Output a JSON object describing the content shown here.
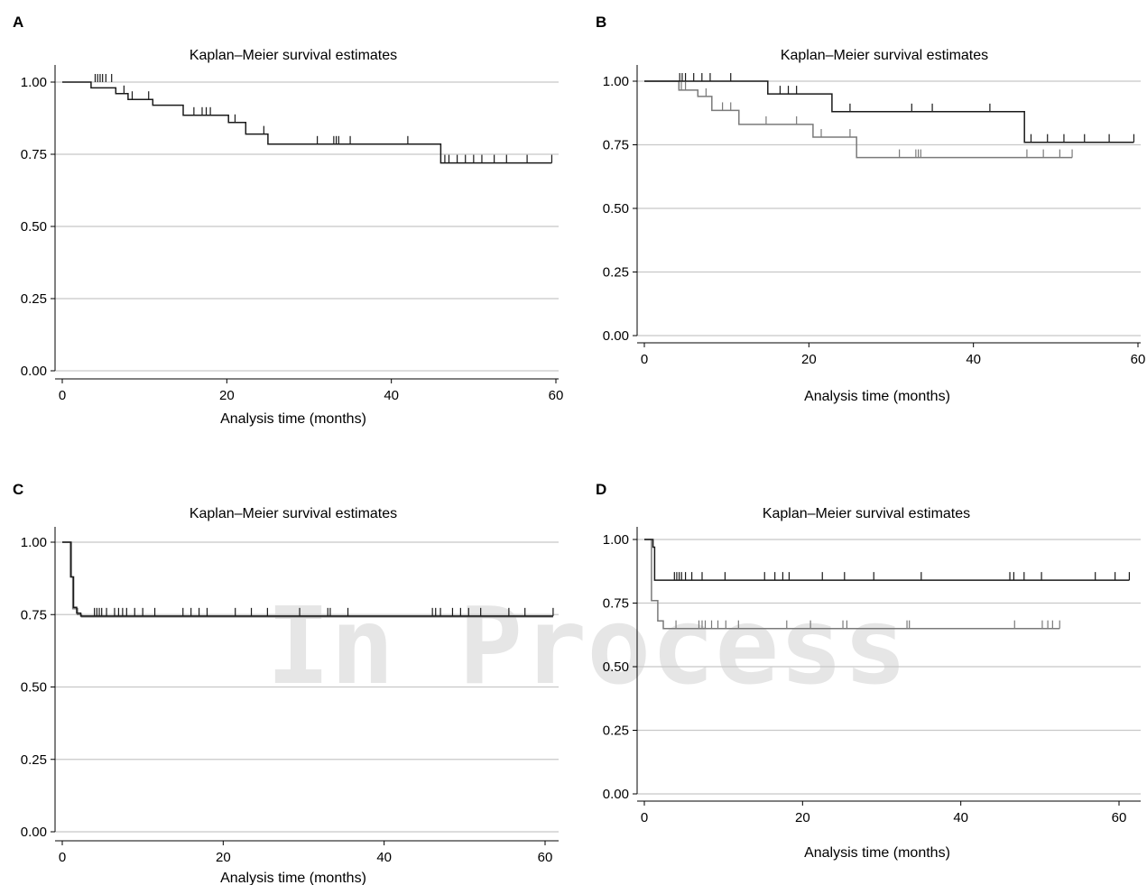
{
  "watermark": "In Process",
  "colors": {
    "black_series": "#1a1a1a",
    "gray_series": "#7a7a7a",
    "grid": "#c8c8c8"
  },
  "chart_data": [
    {
      "panel": "A",
      "type": "line",
      "title": "Kaplan–Meier survival estimates",
      "xlabel": "Analysis time (months)",
      "ylabel": "",
      "xlim": [
        0,
        60
      ],
      "ylim": [
        0,
        1
      ],
      "xticks": [
        0,
        20,
        40,
        60
      ],
      "yticks": [
        0,
        0.25,
        0.5,
        0.75,
        1.0
      ],
      "ytick_labels": [
        "0.00",
        "0.25",
        "0.50",
        "0.75",
        "1.00"
      ],
      "grid": true,
      "series": [
        {
          "color": "#1a1a1a",
          "steps": [
            [
              0,
              1.0
            ],
            [
              3.5,
              1.0
            ],
            [
              3.5,
              0.98
            ],
            [
              6.5,
              0.98
            ],
            [
              6.5,
              0.96
            ],
            [
              8,
              0.96
            ],
            [
              8,
              0.94
            ],
            [
              11,
              0.94
            ],
            [
              11,
              0.92
            ],
            [
              14.7,
              0.92
            ],
            [
              14.7,
              0.885
            ],
            [
              20.2,
              0.885
            ],
            [
              20.2,
              0.86
            ],
            [
              22.3,
              0.86
            ],
            [
              22.3,
              0.82
            ],
            [
              25,
              0.82
            ],
            [
              25,
              0.785
            ],
            [
              46,
              0.785
            ],
            [
              46,
              0.72
            ],
            [
              59.5,
              0.72
            ]
          ],
          "censored": [
            [
              4,
              1.0
            ],
            [
              4.3,
              1.0
            ],
            [
              4.6,
              1.0
            ],
            [
              4.9,
              1.0
            ],
            [
              5.3,
              1.0
            ],
            [
              6,
              1.0
            ],
            [
              7.5,
              0.96
            ],
            [
              8.5,
              0.94
            ],
            [
              10.5,
              0.94
            ],
            [
              16,
              0.885
            ],
            [
              17,
              0.885
            ],
            [
              17.5,
              0.885
            ],
            [
              18,
              0.885
            ],
            [
              21,
              0.86
            ],
            [
              24.5,
              0.82
            ],
            [
              31,
              0.785
            ],
            [
              33,
              0.785
            ],
            [
              33.3,
              0.785
            ],
            [
              33.6,
              0.785
            ],
            [
              35,
              0.785
            ],
            [
              42,
              0.785
            ],
            [
              46.5,
              0.72
            ],
            [
              47,
              0.72
            ],
            [
              48,
              0.72
            ],
            [
              49,
              0.72
            ],
            [
              50,
              0.72
            ],
            [
              51,
              0.72
            ],
            [
              52.5,
              0.72
            ],
            [
              54,
              0.72
            ],
            [
              56.5,
              0.72
            ],
            [
              59.5,
              0.72
            ]
          ]
        }
      ]
    },
    {
      "panel": "B",
      "type": "line",
      "title": "Kaplan–Meier survival estimates",
      "xlabel": "Analysis time (months)",
      "ylabel": "",
      "xlim": [
        0,
        60
      ],
      "ylim": [
        0,
        1
      ],
      "xticks": [
        0,
        20,
        40,
        60
      ],
      "yticks": [
        0,
        0.25,
        0.5,
        0.75,
        1.0
      ],
      "ytick_labels": [
        "0.00",
        "0.25",
        "0.50",
        "0.75",
        "1.00"
      ],
      "grid": true,
      "series": [
        {
          "color": "#1a1a1a",
          "steps": [
            [
              0,
              1.0
            ],
            [
              15,
              1.0
            ],
            [
              15,
              0.95
            ],
            [
              22.8,
              0.95
            ],
            [
              22.8,
              0.88
            ],
            [
              46.2,
              0.88
            ],
            [
              46.2,
              0.76
            ],
            [
              59.5,
              0.76
            ]
          ],
          "censored": [
            [
              4.3,
              1.0
            ],
            [
              4.6,
              1.0
            ],
            [
              5,
              1.0
            ],
            [
              6,
              1.0
            ],
            [
              7,
              1.0
            ],
            [
              8,
              1.0
            ],
            [
              10.5,
              1.0
            ],
            [
              16.5,
              0.95
            ],
            [
              17.5,
              0.95
            ],
            [
              18.5,
              0.95
            ],
            [
              25,
              0.88
            ],
            [
              32.5,
              0.88
            ],
            [
              35,
              0.88
            ],
            [
              42,
              0.88
            ],
            [
              47,
              0.76
            ],
            [
              49,
              0.76
            ],
            [
              51,
              0.76
            ],
            [
              53.5,
              0.76
            ],
            [
              56.5,
              0.76
            ],
            [
              59.5,
              0.76
            ]
          ]
        },
        {
          "color": "#7a7a7a",
          "steps": [
            [
              0,
              1.0
            ],
            [
              4.2,
              1.0
            ],
            [
              4.2,
              0.965
            ],
            [
              6.5,
              0.965
            ],
            [
              6.5,
              0.94
            ],
            [
              8.2,
              0.94
            ],
            [
              8.2,
              0.885
            ],
            [
              11.5,
              0.885
            ],
            [
              11.5,
              0.83
            ],
            [
              20.5,
              0.83
            ],
            [
              20.5,
              0.78
            ],
            [
              25.8,
              0.78
            ],
            [
              25.8,
              0.7
            ],
            [
              52,
              0.7
            ]
          ],
          "censored": [
            [
              4.5,
              0.965
            ],
            [
              5,
              0.965
            ],
            [
              7.5,
              0.94
            ],
            [
              9.5,
              0.885
            ],
            [
              10.5,
              0.885
            ],
            [
              14.8,
              0.83
            ],
            [
              18.5,
              0.83
            ],
            [
              21.5,
              0.78
            ],
            [
              25,
              0.78
            ],
            [
              31,
              0.7
            ],
            [
              33,
              0.7
            ],
            [
              33.3,
              0.7
            ],
            [
              33.6,
              0.7
            ],
            [
              46.5,
              0.7
            ],
            [
              48.5,
              0.7
            ],
            [
              50.5,
              0.7
            ],
            [
              52,
              0.7
            ]
          ]
        }
      ]
    },
    {
      "panel": "C",
      "type": "line",
      "title": "Kaplan–Meier survival estimates",
      "xlabel": "Analysis time (months)",
      "ylabel": "",
      "xlim": [
        0,
        60
      ],
      "ylim": [
        0,
        1
      ],
      "xticks": [
        0,
        20,
        40,
        60
      ],
      "yticks": [
        0,
        0.25,
        0.5,
        0.75,
        1.0
      ],
      "ytick_labels": [
        "0.00",
        "0.25",
        "0.50",
        "0.75",
        "1.00"
      ],
      "grid": true,
      "series": [
        {
          "color": "#1a1a1a",
          "steps": [
            [
              0,
              1.0
            ],
            [
              1.1,
              1.0
            ],
            [
              1.1,
              0.88
            ],
            [
              1.4,
              0.88
            ],
            [
              1.4,
              0.775
            ],
            [
              1.8,
              0.775
            ],
            [
              1.8,
              0.755
            ],
            [
              2.3,
              0.755
            ],
            [
              2.3,
              0.745
            ],
            [
              61,
              0.745
            ]
          ],
          "censored": [
            [
              4,
              0.745
            ],
            [
              4.3,
              0.745
            ],
            [
              4.6,
              0.745
            ],
            [
              4.9,
              0.745
            ],
            [
              5.5,
              0.745
            ],
            [
              6.5,
              0.745
            ],
            [
              7,
              0.745
            ],
            [
              7.5,
              0.745
            ],
            [
              8,
              0.745
            ],
            [
              9,
              0.745
            ],
            [
              10,
              0.745
            ],
            [
              11.5,
              0.745
            ],
            [
              15,
              0.745
            ],
            [
              16,
              0.745
            ],
            [
              17,
              0.745
            ],
            [
              18,
              0.745
            ],
            [
              21.5,
              0.745
            ],
            [
              23.5,
              0.745
            ],
            [
              25.5,
              0.745
            ],
            [
              29.5,
              0.745
            ],
            [
              33,
              0.745
            ],
            [
              33.3,
              0.745
            ],
            [
              35.5,
              0.745
            ],
            [
              46,
              0.745
            ],
            [
              46.4,
              0.745
            ],
            [
              47,
              0.745
            ],
            [
              48.5,
              0.745
            ],
            [
              49.5,
              0.745
            ],
            [
              50.5,
              0.745
            ],
            [
              52,
              0.745
            ],
            [
              55.5,
              0.745
            ],
            [
              57.5,
              0.745
            ],
            [
              61,
              0.745
            ]
          ]
        },
        {
          "color": "#7a7a7a",
          "steps": [
            [
              0,
              1.0
            ],
            [
              1.0,
              1.0
            ],
            [
              1.0,
              0.88
            ],
            [
              1.3,
              0.88
            ],
            [
              1.3,
              0.77
            ],
            [
              1.9,
              0.77
            ],
            [
              1.9,
              0.75
            ],
            [
              2.4,
              0.75
            ],
            [
              2.4,
              0.742
            ],
            [
              61,
              0.742
            ]
          ],
          "censored": []
        }
      ]
    },
    {
      "panel": "D",
      "type": "line",
      "title": "Kaplan–Meier survival estimates",
      "xlabel": "Analysis time (months)",
      "ylabel": "",
      "xlim": [
        0,
        60
      ],
      "ylim": [
        0,
        1
      ],
      "xticks": [
        0,
        20,
        40,
        60
      ],
      "yticks": [
        0,
        0.25,
        0.5,
        0.75,
        1.0
      ],
      "ytick_labels": [
        "0.00",
        "0.25",
        "0.50",
        "0.75",
        "1.00"
      ],
      "grid": true,
      "series": [
        {
          "color": "#1a1a1a",
          "steps": [
            [
              0,
              1.0
            ],
            [
              1.1,
              1.0
            ],
            [
              1.1,
              0.97
            ],
            [
              1.3,
              0.97
            ],
            [
              1.3,
              0.84
            ],
            [
              61.3,
              0.84
            ]
          ],
          "censored": [
            [
              3.8,
              0.84
            ],
            [
              4.1,
              0.84
            ],
            [
              4.4,
              0.84
            ],
            [
              4.7,
              0.84
            ],
            [
              5.2,
              0.84
            ],
            [
              6,
              0.84
            ],
            [
              7.3,
              0.84
            ],
            [
              10.2,
              0.84
            ],
            [
              15.2,
              0.84
            ],
            [
              16.5,
              0.84
            ],
            [
              17.5,
              0.84
            ],
            [
              18.3,
              0.84
            ],
            [
              22.5,
              0.84
            ],
            [
              25.3,
              0.84
            ],
            [
              29,
              0.84
            ],
            [
              35,
              0.84
            ],
            [
              46.2,
              0.84
            ],
            [
              46.7,
              0.84
            ],
            [
              48,
              0.84
            ],
            [
              50.2,
              0.84
            ],
            [
              57,
              0.84
            ],
            [
              59.5,
              0.84
            ],
            [
              61.3,
              0.84
            ]
          ]
        },
        {
          "color": "#7a7a7a",
          "steps": [
            [
              0,
              1.0
            ],
            [
              0.9,
              1.0
            ],
            [
              0.9,
              0.76
            ],
            [
              1.7,
              0.76
            ],
            [
              1.7,
              0.68
            ],
            [
              2.4,
              0.68
            ],
            [
              2.4,
              0.65
            ],
            [
              52.5,
              0.65
            ]
          ],
          "censored": [
            [
              4,
              0.65
            ],
            [
              6.9,
              0.65
            ],
            [
              7.3,
              0.65
            ],
            [
              7.7,
              0.65
            ],
            [
              8.5,
              0.65
            ],
            [
              9.3,
              0.65
            ],
            [
              10.3,
              0.65
            ],
            [
              11.9,
              0.65
            ],
            [
              18,
              0.65
            ],
            [
              21,
              0.65
            ],
            [
              25.1,
              0.65
            ],
            [
              25.6,
              0.65
            ],
            [
              33.2,
              0.65
            ],
            [
              33.5,
              0.65
            ],
            [
              46.8,
              0.65
            ],
            [
              50.3,
              0.65
            ],
            [
              51,
              0.65
            ],
            [
              51.6,
              0.65
            ],
            [
              52.5,
              0.65
            ]
          ]
        }
      ]
    }
  ]
}
